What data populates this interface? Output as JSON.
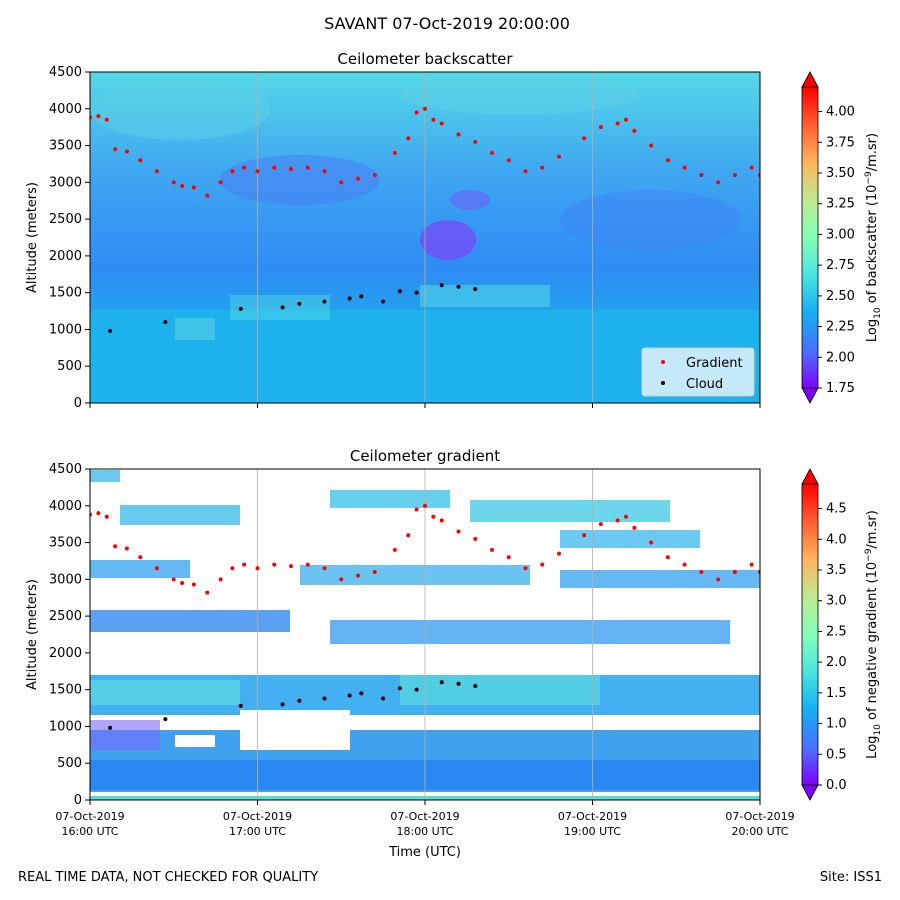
{
  "suptitle": "SAVANT 07-Oct-2019 20:00:00",
  "footer": {
    "left": "REAL TIME DATA, NOT CHECKED FOR QUALITY",
    "right": "Site: ISS1"
  },
  "colors": {
    "gradient_marker": "#ff0000",
    "cloud_marker": "#000000",
    "colormap": [
      "#8000ff",
      "#4a6ffb",
      "#16aef2",
      "#4ce6e0",
      "#84ffb4",
      "#bbeb91",
      "#ffb45e",
      "#ff5a30",
      "#ff0000"
    ]
  },
  "chart_data": [
    {
      "type": "heatmap",
      "title": "Ceilometer backscatter",
      "ylabel": "Altitude (meters)",
      "xlabel": "",
      "ylim": [
        0,
        4500
      ],
      "yticks": [
        "0",
        "500",
        "1000",
        "1500",
        "2000",
        "2500",
        "3000",
        "3500",
        "4000",
        "4500"
      ],
      "x_range": [
        "07-Oct-2019 16:00 UTC",
        "07-Oct-2019 20:00 UTC"
      ],
      "grid": "vertical",
      "colorbar": {
        "label_main": "Log",
        "label_sub": "10",
        "label_rest": " of backscatter (10",
        "label_sup": "−9",
        "label_end": "/m.sr)",
        "min": 1.75,
        "max": 4.2,
        "ticks": [
          "1.75",
          "2.00",
          "2.25",
          "2.50",
          "2.75",
          "3.00",
          "3.25",
          "3.50",
          "3.75",
          "4.00"
        ],
        "extend": "both"
      },
      "legend": {
        "placement": "lower right",
        "entries": [
          "Gradient",
          "Cloud"
        ]
      }
    },
    {
      "type": "heatmap",
      "title": "Ceilometer gradient",
      "ylabel": "Altitude (meters)",
      "xlabel": "Time (UTC)",
      "ylim": [
        0,
        4500
      ],
      "yticks": [
        "0",
        "500",
        "1000",
        "1500",
        "2000",
        "2500",
        "3000",
        "3500",
        "4000",
        "4500"
      ],
      "xticks": [
        {
          "date": "07-Oct-2019",
          "time": "16:00 UTC"
        },
        {
          "date": "07-Oct-2019",
          "time": "17:00 UTC"
        },
        {
          "date": "07-Oct-2019",
          "time": "18:00 UTC"
        },
        {
          "date": "07-Oct-2019",
          "time": "19:00 UTC"
        },
        {
          "date": "07-Oct-2019",
          "time": "20:00 UTC"
        }
      ],
      "grid": "vertical",
      "colorbar": {
        "label_main": "Log",
        "label_sub": "10",
        "label_rest": " of negative gradient (10",
        "label_sup": "−9",
        "label_end": "/m.sr)",
        "min": 0.0,
        "max": 4.9,
        "ticks": [
          "0.0",
          "0.5",
          "1.0",
          "1.5",
          "2.0",
          "2.5",
          "3.0",
          "3.5",
          "4.0",
          "4.5"
        ],
        "extend": "both"
      }
    }
  ],
  "series": {
    "gradient_points": [
      [
        16.0,
        3880
      ],
      [
        16.05,
        3900
      ],
      [
        16.1,
        3850
      ],
      [
        16.15,
        3450
      ],
      [
        16.22,
        3420
      ],
      [
        16.3,
        3300
      ],
      [
        16.4,
        3150
      ],
      [
        16.5,
        3000
      ],
      [
        16.55,
        2950
      ],
      [
        16.62,
        2930
      ],
      [
        16.7,
        2820
      ],
      [
        16.78,
        3000
      ],
      [
        16.85,
        3150
      ],
      [
        16.92,
        3200
      ],
      [
        17.0,
        3150
      ],
      [
        17.1,
        3200
      ],
      [
        17.2,
        3180
      ],
      [
        17.3,
        3200
      ],
      [
        17.4,
        3150
      ],
      [
        17.5,
        3000
      ],
      [
        17.6,
        3050
      ],
      [
        17.7,
        3100
      ],
      [
        17.82,
        3400
      ],
      [
        17.9,
        3600
      ],
      [
        17.95,
        3950
      ],
      [
        18.0,
        4000
      ],
      [
        18.05,
        3850
      ],
      [
        18.1,
        3800
      ],
      [
        18.2,
        3650
      ],
      [
        18.3,
        3550
      ],
      [
        18.4,
        3400
      ],
      [
        18.5,
        3300
      ],
      [
        18.6,
        3150
      ],
      [
        18.7,
        3200
      ],
      [
        18.8,
        3350
      ],
      [
        18.95,
        3600
      ],
      [
        19.05,
        3750
      ],
      [
        19.15,
        3800
      ],
      [
        19.2,
        3850
      ],
      [
        19.25,
        3700
      ],
      [
        19.35,
        3500
      ],
      [
        19.45,
        3300
      ],
      [
        19.55,
        3200
      ],
      [
        19.65,
        3100
      ],
      [
        19.75,
        3000
      ],
      [
        19.85,
        3100
      ],
      [
        19.95,
        3200
      ],
      [
        20.0,
        3100
      ]
    ],
    "cloud_points": [
      [
        16.12,
        980
      ],
      [
        16.45,
        1100
      ],
      [
        16.9,
        1280
      ],
      [
        17.15,
        1300
      ],
      [
        17.25,
        1350
      ],
      [
        17.4,
        1380
      ],
      [
        17.55,
        1420
      ],
      [
        17.62,
        1450
      ],
      [
        17.75,
        1380
      ],
      [
        17.85,
        1520
      ],
      [
        17.95,
        1500
      ],
      [
        18.1,
        1600
      ],
      [
        18.2,
        1580
      ],
      [
        18.3,
        1550
      ]
    ]
  }
}
